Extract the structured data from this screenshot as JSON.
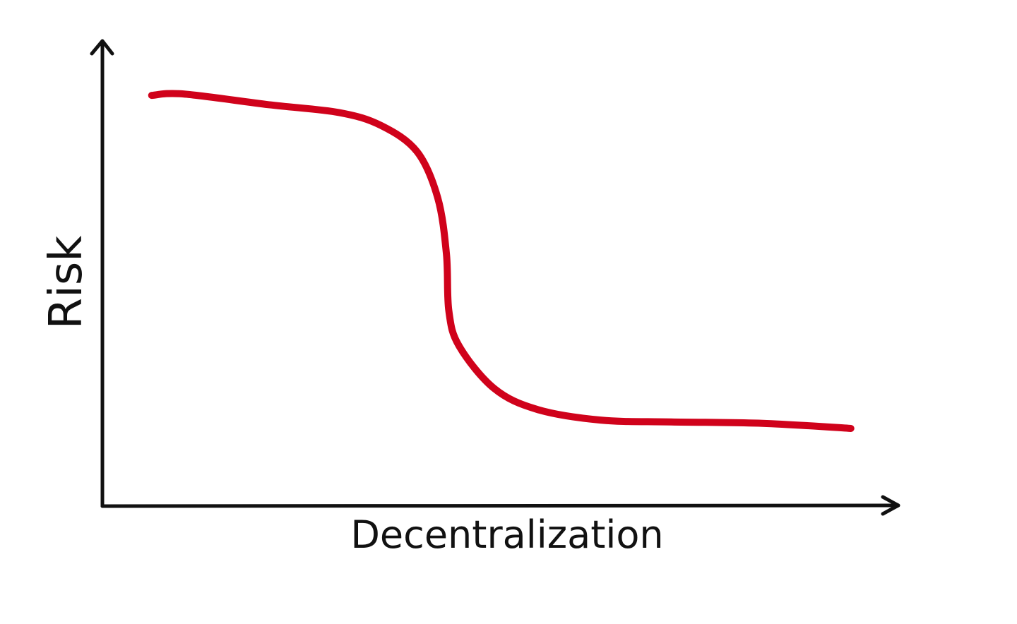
{
  "chart_data": {
    "type": "line",
    "title": "",
    "xlabel": "Decentralization",
    "ylabel": "Risk",
    "xlim": [
      0,
      100
    ],
    "ylim": [
      0,
      100
    ],
    "grid": false,
    "ticks": false,
    "series": [
      {
        "color": "#d0021b",
        "x": [
          6.2,
          10.2,
          20.9,
          29.8,
          35.1,
          39.6,
          42.2,
          43.3,
          43.6,
          44.9,
          49.3,
          54.7,
          62.7,
          71.6,
          83.1,
          94.2
        ],
        "y": [
          88.3,
          88.6,
          86.3,
          84.6,
          81.8,
          76.2,
          66.3,
          54.2,
          42.0,
          34.4,
          25.3,
          20.8,
          18.5,
          18.1,
          17.8,
          16.7
        ]
      }
    ]
  },
  "colors": {
    "axis": "#111111",
    "curve": "#d0021b"
  }
}
